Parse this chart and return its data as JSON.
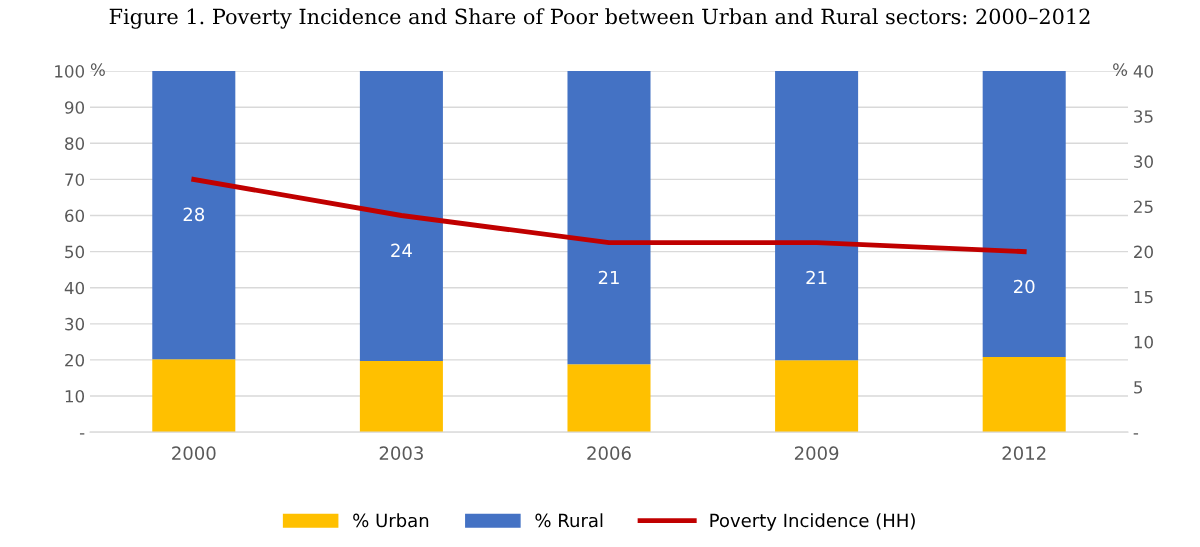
{
  "chart_data": {
    "type": "bar",
    "title": "Figure 1. Poverty Incidence and Share of Poor between Urban and Rural sectors: 2000–2012",
    "categories": [
      "2000",
      "2003",
      "2006",
      "2009",
      "2012"
    ],
    "stacked": true,
    "series": [
      {
        "name": "% Urban",
        "color": "#ffc000",
        "values": [
          20.2,
          19.7,
          18.8,
          19.9,
          20.8
        ]
      },
      {
        "name": "% Rural",
        "color": "#4472c4",
        "values": [
          79.8,
          80.3,
          81.2,
          80.1,
          79.2
        ]
      },
      {
        "name": "Poverty Incidence (HH)",
        "type": "line",
        "axis": "y2",
        "color": "#c00000",
        "values": [
          28,
          24,
          21,
          21,
          20
        ],
        "data_labels": true
      }
    ],
    "ylabel": "%",
    "y2label": "%",
    "ylim": [
      0,
      100
    ],
    "yticks": [
      {
        "value": 0,
        "label": "-"
      },
      10,
      20,
      30,
      40,
      50,
      60,
      70,
      80,
      90,
      100
    ],
    "y2lim": [
      0,
      40
    ],
    "y2ticks": [
      {
        "value": 0,
        "label": "-"
      },
      5,
      10,
      15,
      20,
      25,
      30,
      35,
      40
    ],
    "grid": "y",
    "legend": "bottom",
    "marker": "none",
    "line_style": "solid"
  }
}
